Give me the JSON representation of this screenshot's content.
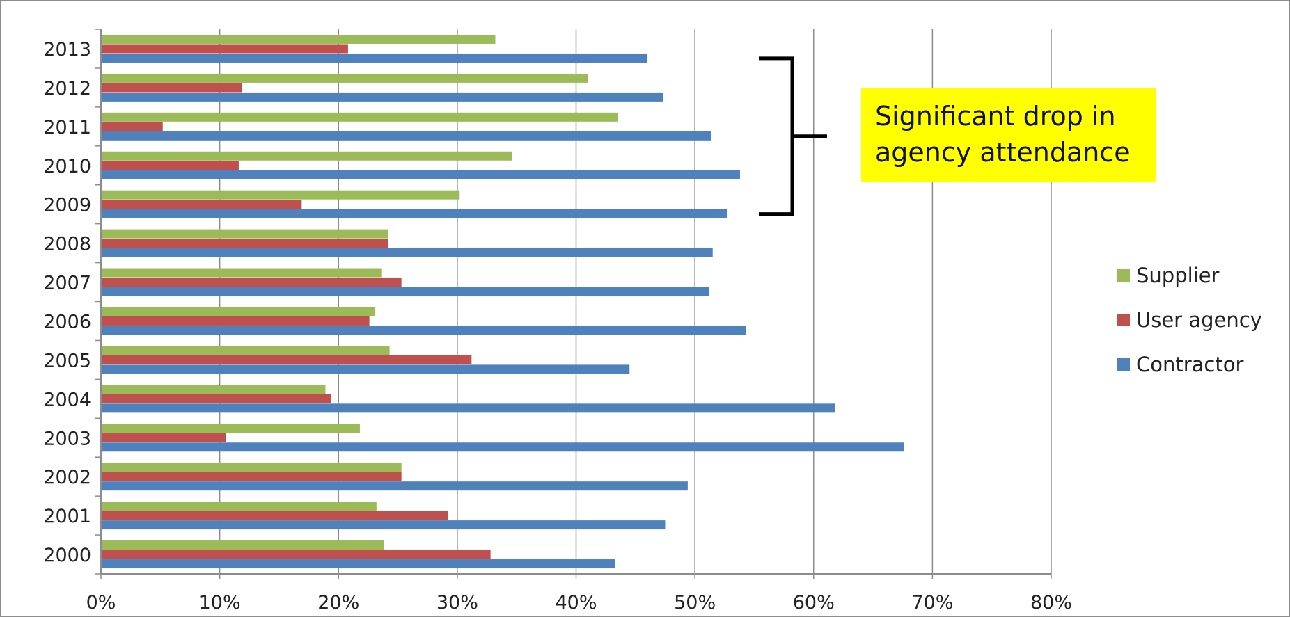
{
  "chart_data": {
    "type": "bar",
    "orientation": "horizontal",
    "categories": [
      "2000",
      "2001",
      "2002",
      "2003",
      "2004",
      "2005",
      "2006",
      "2007",
      "2008",
      "2009",
      "2010",
      "2011",
      "2012",
      "2013"
    ],
    "series": [
      {
        "name": "Contractor",
        "color": "#4f81bd",
        "values": [
          43.3,
          47.5,
          49.4,
          67.6,
          61.8,
          44.5,
          54.3,
          51.2,
          51.5,
          52.7,
          53.8,
          51.4,
          47.3,
          46.0
        ]
      },
      {
        "name": "User agency",
        "color": "#c0504d",
        "values": [
          32.8,
          29.2,
          25.3,
          10.5,
          19.4,
          31.2,
          22.6,
          25.3,
          24.2,
          16.9,
          11.6,
          5.2,
          11.9,
          20.8
        ]
      },
      {
        "name": "Supplier",
        "color": "#9bbb59",
        "values": [
          23.8,
          23.2,
          25.3,
          21.8,
          18.9,
          24.3,
          23.1,
          23.6,
          24.2,
          30.2,
          34.6,
          43.5,
          41.0,
          33.2
        ]
      }
    ],
    "x_ticks": [
      "0%",
      "10%",
      "20%",
      "30%",
      "40%",
      "50%",
      "60%",
      "70%",
      "80%"
    ],
    "xlim": [
      0,
      80
    ],
    "grid": true,
    "legend": {
      "placement": "right",
      "order": [
        "Supplier",
        "User agency",
        "Contractor"
      ]
    },
    "annotation": {
      "lines": [
        "Significant drop in",
        "agency attendance"
      ],
      "bracket_years": [
        "2009",
        "2012"
      ],
      "background": "#ffff00"
    }
  }
}
